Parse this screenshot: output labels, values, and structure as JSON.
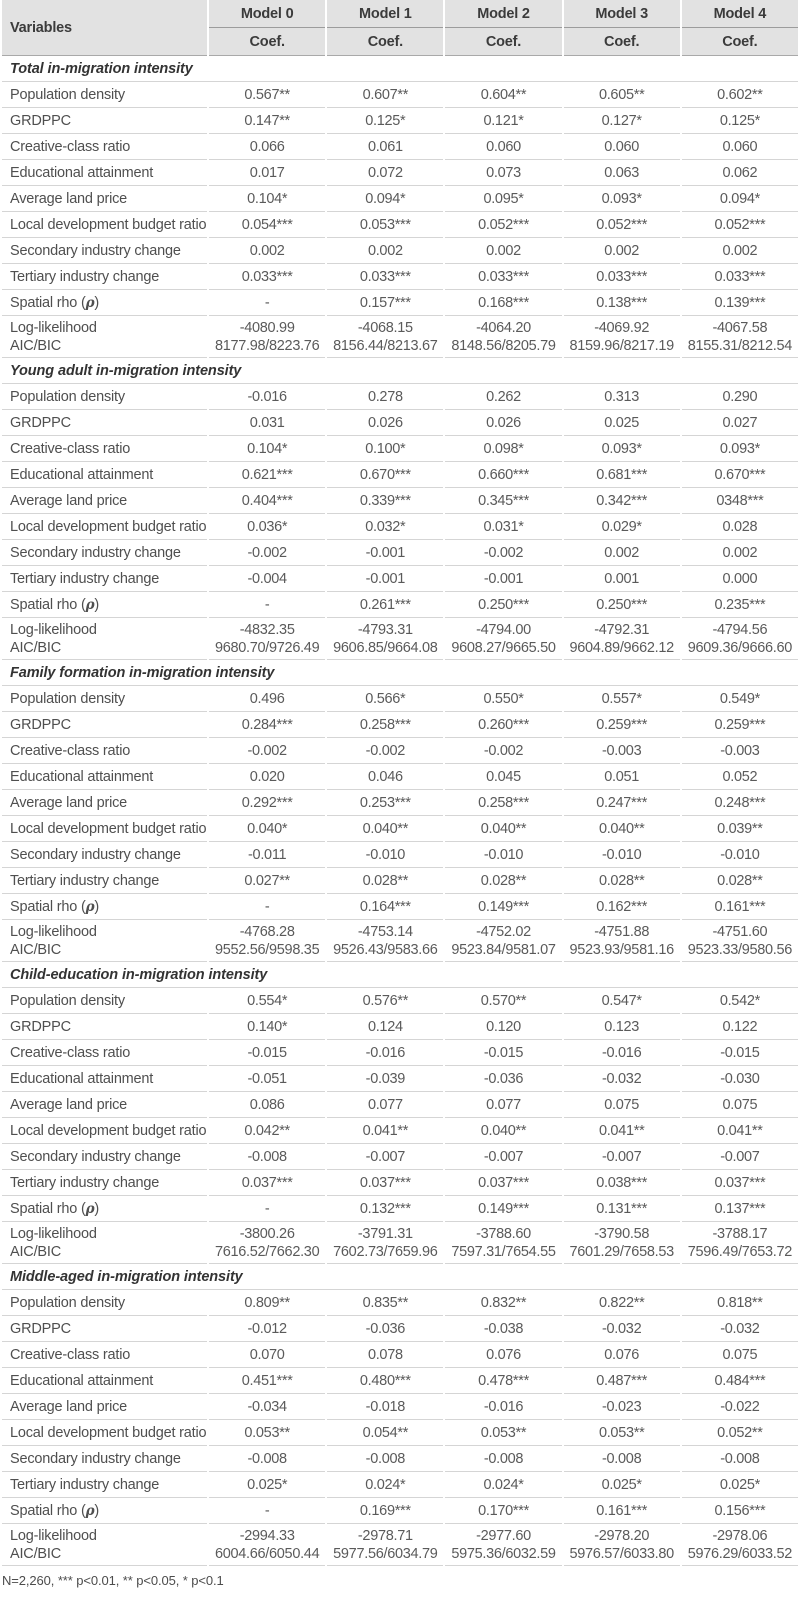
{
  "header": {
    "variables_label": "Variables",
    "models": [
      "Model 0",
      "Model 1",
      "Model 2",
      "Model 3",
      "Model 4"
    ],
    "coef_label": "Coef."
  },
  "fit_labels": {
    "loglik": "Log-likelihood",
    "aic_bic": "AIC/BIC"
  },
  "sections": [
    {
      "title": "Total in-migration intensity",
      "rows": [
        {
          "label": "Population density",
          "values": [
            "0.567**",
            "0.607**",
            "0.604**",
            "0.605**",
            "0.602**"
          ]
        },
        {
          "label": "GRDPPC",
          "values": [
            "0.147**",
            "0.125*",
            "0.121*",
            "0.127*",
            "0.125*"
          ]
        },
        {
          "label": "Creative-class ratio",
          "values": [
            "0.066",
            "0.061",
            "0.060",
            "0.060",
            "0.060"
          ]
        },
        {
          "label": "Educational attainment",
          "values": [
            "0.017",
            "0.072",
            "0.073",
            "0.063",
            "0.062"
          ]
        },
        {
          "label": "Average land price",
          "values": [
            "0.104*",
            "0.094*",
            "0.095*",
            "0.093*",
            "0.094*"
          ]
        },
        {
          "label": "Local development budget ratio",
          "values": [
            "0.054***",
            "0.053***",
            "0.052***",
            "0.052***",
            "0.052***"
          ]
        },
        {
          "label": "Secondary industry change",
          "values": [
            "0.002",
            "0.002",
            "0.002",
            "0.002",
            "0.002"
          ]
        },
        {
          "label": "Tertiary industry change",
          "values": [
            "0.033***",
            "0.033***",
            "0.033***",
            "0.033***",
            "0.033***"
          ]
        },
        {
          "label": "Spatial rho (ρ)",
          "values": [
            "-",
            "0.157***",
            "0.168***",
            "0.138***",
            "0.139***"
          ]
        }
      ],
      "fit": {
        "loglik": [
          "-4080.99",
          "-4068.15",
          "-4064.20",
          "-4069.92",
          "-4067.58"
        ],
        "aic_bic": [
          "8177.98/8223.76",
          "8156.44/8213.67",
          "8148.56/8205.79",
          "8159.96/8217.19",
          "8155.31/8212.54"
        ]
      }
    },
    {
      "title": "Young adult in-migration intensity",
      "rows": [
        {
          "label": "Population density",
          "values": [
            "-0.016",
            "0.278",
            "0.262",
            "0.313",
            "0.290"
          ]
        },
        {
          "label": "GRDPPC",
          "values": [
            "0.031",
            "0.026",
            "0.026",
            "0.025",
            "0.027"
          ]
        },
        {
          "label": "Creative-class ratio",
          "values": [
            "0.104*",
            "0.100*",
            "0.098*",
            "0.093*",
            "0.093*"
          ]
        },
        {
          "label": "Educational attainment",
          "values": [
            "0.621***",
            "0.670***",
            "0.660***",
            "0.681***",
            "0.670***"
          ]
        },
        {
          "label": "Average land price",
          "values": [
            "0.404***",
            "0.339***",
            "0.345***",
            "0.342***",
            "0348***"
          ]
        },
        {
          "label": "Local development budget ratio",
          "values": [
            "0.036*",
            "0.032*",
            "0.031*",
            "0.029*",
            "0.028"
          ]
        },
        {
          "label": "Secondary industry change",
          "values": [
            "-0.002",
            "-0.001",
            "-0.002",
            "0.002",
            "0.002"
          ]
        },
        {
          "label": "Tertiary industry change",
          "values": [
            "-0.004",
            "-0.001",
            "-0.001",
            "0.001",
            "0.000"
          ]
        },
        {
          "label": "Spatial rho (ρ)",
          "values": [
            "-",
            "0.261***",
            "0.250***",
            "0.250***",
            "0.235***"
          ]
        }
      ],
      "fit": {
        "loglik": [
          "-4832.35",
          "-4793.31",
          "-4794.00",
          "-4792.31",
          "-4794.56"
        ],
        "aic_bic": [
          "9680.70/9726.49",
          "9606.85/9664.08",
          "9608.27/9665.50",
          "9604.89/9662.12",
          "9609.36/9666.60"
        ]
      }
    },
    {
      "title": "Family formation in-migration intensity",
      "rows": [
        {
          "label": "Population density",
          "values": [
            "0.496",
            "0.566*",
            "0.550*",
            "0.557*",
            "0.549*"
          ]
        },
        {
          "label": "GRDPPC",
          "values": [
            "0.284***",
            "0.258***",
            "0.260***",
            "0.259***",
            "0.259***"
          ]
        },
        {
          "label": "Creative-class ratio",
          "values": [
            "-0.002",
            "-0.002",
            "-0.002",
            "-0.003",
            "-0.003"
          ]
        },
        {
          "label": "Educational attainment",
          "values": [
            "0.020",
            "0.046",
            "0.045",
            "0.051",
            "0.052"
          ]
        },
        {
          "label": "Average land price",
          "values": [
            "0.292***",
            "0.253***",
            "0.258***",
            "0.247***",
            "0.248***"
          ]
        },
        {
          "label": "Local development budget ratio",
          "values": [
            "0.040*",
            "0.040**",
            "0.040**",
            "0.040**",
            "0.039**"
          ]
        },
        {
          "label": "Secondary industry change",
          "values": [
            "-0.011",
            "-0.010",
            "-0.010",
            "-0.010",
            "-0.010"
          ]
        },
        {
          "label": "Tertiary industry change",
          "values": [
            "0.027**",
            "0.028**",
            "0.028**",
            "0.028**",
            "0.028**"
          ]
        },
        {
          "label": "Spatial rho (ρ)",
          "values": [
            "-",
            "0.164***",
            "0.149***",
            "0.162***",
            "0.161***"
          ]
        }
      ],
      "fit": {
        "loglik": [
          "-4768.28",
          "-4753.14",
          "-4752.02",
          "-4751.88",
          "-4751.60"
        ],
        "aic_bic": [
          "9552.56/9598.35",
          "9526.43/9583.66",
          "9523.84/9581.07",
          "9523.93/9581.16",
          "9523.33/9580.56"
        ]
      }
    },
    {
      "title": "Child-education in-migration intensity",
      "rows": [
        {
          "label": "Population density",
          "values": [
            "0.554*",
            "0.576**",
            "0.570**",
            "0.547*",
            "0.542*"
          ]
        },
        {
          "label": "GRDPPC",
          "values": [
            "0.140*",
            "0.124",
            "0.120",
            "0.123",
            "0.122"
          ]
        },
        {
          "label": "Creative-class ratio",
          "values": [
            "-0.015",
            "-0.016",
            "-0.015",
            "-0.016",
            "-0.015"
          ]
        },
        {
          "label": "Educational attainment",
          "values": [
            "-0.051",
            "-0.039",
            "-0.036",
            "-0.032",
            "-0.030"
          ]
        },
        {
          "label": "Average land price",
          "values": [
            "0.086",
            "0.077",
            "0.077",
            "0.075",
            "0.075"
          ]
        },
        {
          "label": "Local development budget ratio",
          "values": [
            "0.042**",
            "0.041**",
            "0.040**",
            "0.041**",
            "0.041**"
          ]
        },
        {
          "label": "Secondary industry change",
          "values": [
            "-0.008",
            "-0.007",
            "-0.007",
            "-0.007",
            "-0.007"
          ]
        },
        {
          "label": "Tertiary industry change",
          "values": [
            "0.037***",
            "0.037***",
            "0.037***",
            "0.038***",
            "0.037***"
          ]
        },
        {
          "label": "Spatial rho (ρ)",
          "values": [
            "-",
            "0.132***",
            "0.149***",
            "0.131***",
            "0.137***"
          ]
        }
      ],
      "fit": {
        "loglik": [
          "-3800.26",
          "-3791.31",
          "-3788.60",
          "-3790.58",
          "-3788.17"
        ],
        "aic_bic": [
          "7616.52/7662.30",
          "7602.73/7659.96",
          "7597.31/7654.55",
          "7601.29/7658.53",
          "7596.49/7653.72"
        ]
      }
    },
    {
      "title": "Middle-aged in-migration intensity",
      "rows": [
        {
          "label": "Population density",
          "values": [
            "0.809**",
            "0.835**",
            "0.832**",
            "0.822**",
            "0.818**"
          ]
        },
        {
          "label": "GRDPPC",
          "values": [
            "-0.012",
            "-0.036",
            "-0.038",
            "-0.032",
            "-0.032"
          ]
        },
        {
          "label": "Creative-class ratio",
          "values": [
            "0.070",
            "0.078",
            "0.076",
            "0.076",
            "0.075"
          ]
        },
        {
          "label": "Educational attainment",
          "values": [
            "0.451***",
            "0.480***",
            "0.478***",
            "0.487***",
            "0.484***"
          ]
        },
        {
          "label": "Average land price",
          "values": [
            "-0.034",
            "-0.018",
            "-0.016",
            "-0.023",
            "-0.022"
          ]
        },
        {
          "label": "Local development budget ratio",
          "values": [
            "0.053**",
            "0.054**",
            "0.053**",
            "0.053**",
            "0.052**"
          ]
        },
        {
          "label": "Secondary industry change",
          "values": [
            "-0.008",
            "-0.008",
            "-0.008",
            "-0.008",
            "-0.008"
          ]
        },
        {
          "label": "Tertiary industry change",
          "values": [
            "0.025*",
            "0.024*",
            "0.024*",
            "0.025*",
            "0.025*"
          ]
        },
        {
          "label": "Spatial rho (ρ)",
          "values": [
            "-",
            "0.169***",
            "0.170***",
            "0.161***",
            "0.156***"
          ]
        }
      ],
      "fit": {
        "loglik": [
          "-2994.33",
          "-2978.71",
          "-2977.60",
          "-2978.20",
          "-2978.06"
        ],
        "aic_bic": [
          "6004.66/6050.44",
          "5977.56/6034.79",
          "5975.36/6032.59",
          "5976.57/6033.80",
          "5976.29/6033.52"
        ]
      }
    }
  ],
  "footnote": "N=2,260, *** p<0.01, ** p<0.05, * p<0.1"
}
